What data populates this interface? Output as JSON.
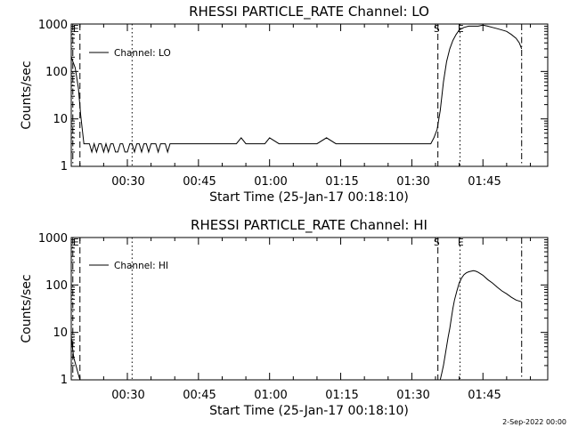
{
  "footer": "2-Sep-2022 00:00",
  "chart_data": [
    {
      "type": "line",
      "title": "RHESSI PARTICLE_RATE Channel: LO",
      "xlabel": "Start Time (25-Jan-17 00:18:10)",
      "ylabel": "Counts/sec",
      "y_scale": "log",
      "ylim": [
        1,
        1000
      ],
      "xlim": [
        "00:18:10",
        "01:58:40"
      ],
      "x_ticks": [
        "00:30",
        "00:45",
        "01:00",
        "01:15",
        "01:30",
        "01:45"
      ],
      "y_ticks": [
        "1",
        "10",
        "100",
        "1000"
      ],
      "legend": {
        "label": "Channel: LO",
        "placement": "top-left"
      },
      "markers": [
        {
          "label": "E",
          "x": "00:18:30",
          "style": "dash-dot"
        },
        {
          "label": "",
          "x": "00:20:00",
          "style": "dashed"
        },
        {
          "label": "",
          "x": "00:31:00",
          "style": "dotted"
        },
        {
          "label": "S",
          "x": "01:35:30",
          "style": "dashed"
        },
        {
          "label": "E",
          "x": "01:40:10",
          "style": "dotted"
        },
        {
          "label": "",
          "x": "01:53:10",
          "style": "dash-dot"
        }
      ],
      "series": [
        {
          "x": [
            "00:18:10",
            "00:19:00",
            "00:19:40",
            "00:20:10",
            "00:20:30",
            "00:20:50",
            "00:21:20",
            "00:22:00",
            "00:22:30",
            "00:23:00",
            "00:23:30",
            "00:24:00",
            "00:24:30",
            "00:25:00",
            "00:25:30",
            "00:26:00",
            "00:26:30",
            "00:27:00",
            "00:27:30",
            "00:28:00",
            "00:28:30",
            "00:29:00",
            "00:29:30",
            "00:30:00",
            "00:30:30",
            "00:31:00",
            "00:31:30",
            "00:32:00",
            "00:32:30",
            "00:33:00",
            "00:33:30",
            "00:34:00",
            "00:34:30",
            "00:35:00",
            "00:35:30",
            "00:36:00",
            "00:36:30",
            "00:37:00",
            "00:37:30",
            "00:38:00",
            "00:38:30",
            "00:39:00",
            "00:39:30",
            "00:40:00",
            "00:41:00",
            "00:42:00",
            "00:43:00",
            "00:44:00",
            "00:45:00",
            "00:46:00",
            "00:47:00",
            "00:48:00",
            "00:49:00",
            "00:50:00",
            "00:51:00",
            "00:52:00",
            "00:53:00",
            "00:54:00",
            "00:55:00",
            "00:56:00",
            "00:57:00",
            "00:58:00",
            "00:59:00",
            "01:00:00",
            "01:02:00",
            "01:04:00",
            "01:06:00",
            "01:08:00",
            "01:10:00",
            "01:12:00",
            "01:14:00",
            "01:16:00",
            "01:18:00",
            "01:20:00",
            "01:22:00",
            "01:24:00",
            "01:26:00",
            "01:28:00",
            "01:30:00",
            "01:31:00",
            "01:32:00",
            "01:33:00",
            "01:34:00",
            "01:34:40",
            "01:35:20",
            "01:36:00",
            "01:36:40",
            "01:37:20",
            "01:38:00",
            "01:38:40",
            "01:39:20",
            "01:40:00",
            "01:41:00",
            "01:42:00",
            "01:43:00",
            "01:44:00",
            "01:45:00",
            "01:46:00",
            "01:47:00",
            "01:48:00",
            "01:49:00",
            "01:50:00",
            "01:51:00",
            "01:52:00",
            "01:52:40",
            "01:53:10"
          ],
          "values": [
            200,
            120,
            45,
            12,
            6,
            3,
            3,
            3,
            2,
            3,
            2,
            3,
            3,
            2,
            3,
            2,
            3,
            3,
            2,
            2,
            3,
            3,
            2,
            2,
            3,
            3,
            2,
            3,
            3,
            2,
            3,
            3,
            2,
            3,
            3,
            3,
            2,
            3,
            3,
            3,
            2,
            3,
            3,
            3,
            3,
            3,
            3,
            3,
            3,
            3,
            3,
            3,
            3,
            3,
            3,
            3,
            3,
            4,
            3,
            3,
            3,
            3,
            3,
            4,
            3,
            3,
            3,
            3,
            3,
            4,
            3,
            3,
            3,
            3,
            3,
            3,
            3,
            3,
            3,
            3,
            3,
            3,
            3,
            4,
            6,
            15,
            60,
            160,
            300,
            450,
            600,
            750,
            850,
            900,
            900,
            900,
            950,
            900,
            850,
            800,
            750,
            700,
            600,
            500,
            400,
            300
          ]
        }
      ]
    },
    {
      "type": "line",
      "title": "RHESSI PARTICLE_RATE Channel: HI",
      "xlabel": "Start Time (25-Jan-17 00:18:10)",
      "ylabel": "Counts/sec",
      "y_scale": "log",
      "ylim": [
        1,
        1000
      ],
      "xlim": [
        "00:18:10",
        "01:58:40"
      ],
      "x_ticks": [
        "00:30",
        "00:45",
        "01:00",
        "01:15",
        "01:30",
        "01:45"
      ],
      "y_ticks": [
        "1",
        "10",
        "100",
        "1000"
      ],
      "legend": {
        "label": "Channel: HI",
        "placement": "top-left"
      },
      "markers": [
        {
          "label": "E",
          "x": "00:18:30",
          "style": "dash-dot"
        },
        {
          "label": "",
          "x": "00:20:00",
          "style": "dashed"
        },
        {
          "label": "",
          "x": "00:31:00",
          "style": "dotted"
        },
        {
          "label": "S",
          "x": "01:35:30",
          "style": "dashed"
        },
        {
          "label": "E",
          "x": "01:40:10",
          "style": "dotted"
        },
        {
          "label": "",
          "x": "01:53:10",
          "style": "dash-dot"
        }
      ],
      "series": [
        {
          "x": [
            "00:18:10",
            "00:18:40",
            "00:19:10",
            "00:19:40",
            "00:20:00",
            "01:36:00",
            "01:36:20",
            "01:36:40",
            "01:37:00",
            "01:37:20",
            "01:37:40",
            "01:38:00",
            "01:38:20",
            "01:38:40",
            "01:39:00",
            "01:39:30",
            "01:40:00",
            "01:40:30",
            "01:41:00",
            "01:41:30",
            "01:42:00",
            "01:42:30",
            "01:43:00",
            "01:43:30",
            "01:44:00",
            "01:45:00",
            "01:46:00",
            "01:47:00",
            "01:48:00",
            "01:49:00",
            "01:50:00",
            "01:51:00",
            "01:52:00",
            "01:53:10"
          ],
          "values": [
            8,
            3,
            2,
            1.3,
            1,
            1,
            1.4,
            2,
            3.2,
            5,
            8,
            12,
            20,
            32,
            48,
            75,
            110,
            140,
            165,
            180,
            190,
            195,
            200,
            195,
            185,
            160,
            130,
            110,
            90,
            75,
            65,
            55,
            48,
            44
          ]
        }
      ]
    }
  ]
}
